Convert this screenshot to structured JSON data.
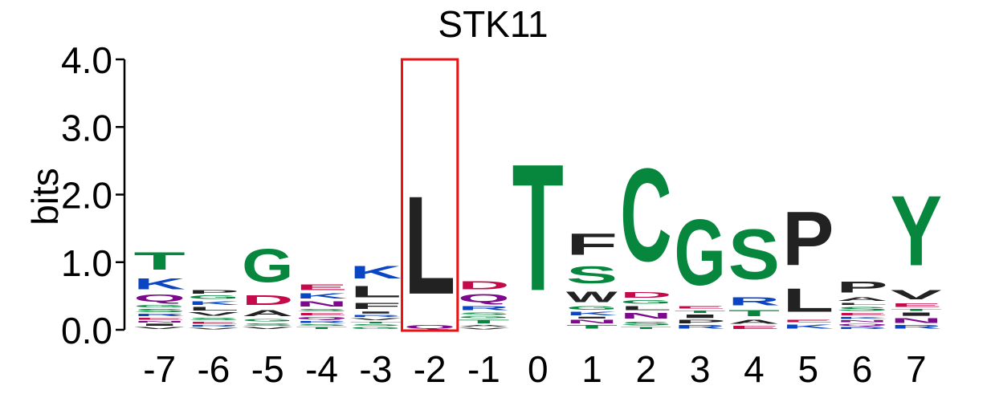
{
  "chart_data": {
    "type": "sequence-logo",
    "title": "STK11",
    "ylabel": "bits",
    "ylim": [
      0,
      4
    ],
    "yticks": [
      "0.0",
      "1.0",
      "2.0",
      "3.0",
      "4.0"
    ],
    "highlight_position": "-2",
    "highlight_color": "#ee1111",
    "colors": {
      "green": "#07873e",
      "blue": "#0a45c4",
      "purple": "#7d0a8c",
      "red": "#c40a4a",
      "black": "#222222"
    },
    "positions": [
      {
        "label": "-7",
        "letters": [
          {
            "l": "V",
            "h": 0.05,
            "c": "black"
          },
          {
            "l": "I",
            "h": 0.05,
            "c": "black"
          },
          {
            "l": "N",
            "h": 0.04,
            "c": "purple"
          },
          {
            "l": "E",
            "h": 0.05,
            "c": "red"
          },
          {
            "l": "R",
            "h": 0.06,
            "c": "blue"
          },
          {
            "l": "S",
            "h": 0.07,
            "c": "green"
          },
          {
            "l": "G",
            "h": 0.06,
            "c": "green"
          },
          {
            "l": "Q",
            "h": 0.17,
            "c": "purple"
          },
          {
            "l": "K",
            "h": 0.26,
            "c": "blue"
          },
          {
            "l": "T",
            "h": 0.42,
            "c": "green"
          }
        ]
      },
      {
        "label": "-6",
        "letters": [
          {
            "l": "V",
            "h": 0.04,
            "c": "black"
          },
          {
            "l": "R",
            "h": 0.04,
            "c": "blue"
          },
          {
            "l": "E",
            "h": 0.05,
            "c": "red"
          },
          {
            "l": "S",
            "h": 0.06,
            "c": "green"
          },
          {
            "l": "V",
            "h": 0.08,
            "c": "black"
          },
          {
            "l": "L",
            "h": 0.08,
            "c": "black"
          },
          {
            "l": "K",
            "h": 0.09,
            "c": "blue"
          },
          {
            "l": "G",
            "h": 0.08,
            "c": "green"
          },
          {
            "l": "P",
            "h": 0.08,
            "c": "black"
          }
        ]
      },
      {
        "label": "-5",
        "letters": [
          {
            "l": "V",
            "h": 0.05,
            "c": "black"
          },
          {
            "l": "S",
            "h": 0.06,
            "c": "green"
          },
          {
            "l": "G",
            "h": 0.06,
            "c": "green"
          },
          {
            "l": "A",
            "h": 0.15,
            "c": "black"
          },
          {
            "l": "D",
            "h": 0.23,
            "c": "red"
          },
          {
            "l": "G",
            "h": 0.79,
            "c": "green"
          }
        ]
      },
      {
        "label": "-4",
        "letters": [
          {
            "l": "T",
            "h": 0.05,
            "c": "green"
          },
          {
            "l": "S",
            "h": 0.04,
            "c": "green"
          },
          {
            "l": "R",
            "h": 0.05,
            "c": "blue"
          },
          {
            "l": "Q",
            "h": 0.06,
            "c": "purple"
          },
          {
            "l": "E",
            "h": 0.06,
            "c": "red"
          },
          {
            "l": "S",
            "h": 0.06,
            "c": "green"
          },
          {
            "l": "N",
            "h": 0.12,
            "c": "purple"
          },
          {
            "l": "K",
            "h": 0.12,
            "c": "blue"
          },
          {
            "l": "E",
            "h": 0.13,
            "c": "red"
          }
        ]
      },
      {
        "label": "-3",
        "letters": [
          {
            "l": "G",
            "h": 0.05,
            "c": "green"
          },
          {
            "l": "S",
            "h": 0.04,
            "c": "green"
          },
          {
            "l": "T",
            "h": 0.04,
            "c": "green"
          },
          {
            "l": "V",
            "h": 0.05,
            "c": "black"
          },
          {
            "l": "R",
            "h": 0.05,
            "c": "blue"
          },
          {
            "l": "I",
            "h": 0.05,
            "c": "black"
          },
          {
            "l": "F",
            "h": 0.15,
            "c": "black"
          },
          {
            "l": "L",
            "h": 0.27,
            "c": "black"
          },
          {
            "l": "K",
            "h": 0.29,
            "c": "blue"
          }
        ]
      },
      {
        "label": "-2",
        "letters": [
          {
            "l": "Q",
            "h": 0.08,
            "c": "purple"
          },
          {
            "l": "L",
            "h": 2.32,
            "c": "black"
          }
        ]
      },
      {
        "label": "-1",
        "letters": [
          {
            "l": "V",
            "h": 0.04,
            "c": "black"
          },
          {
            "l": "A",
            "h": 0.04,
            "c": "black"
          },
          {
            "l": "T",
            "h": 0.08,
            "c": "green"
          },
          {
            "l": "G",
            "h": 0.05,
            "c": "green"
          },
          {
            "l": "S",
            "h": 0.06,
            "c": "green"
          },
          {
            "l": "R",
            "h": 0.1,
            "c": "blue"
          },
          {
            "l": "Q",
            "h": 0.19,
            "c": "purple"
          },
          {
            "l": "D",
            "h": 0.2,
            "c": "red"
          }
        ]
      },
      {
        "label": "0",
        "letters": [
          {
            "l": "T",
            "h": 3.0,
            "c": "green"
          }
        ]
      },
      {
        "label": "1",
        "letters": [
          {
            "l": "T",
            "h": 0.08,
            "c": "green"
          },
          {
            "l": "N",
            "h": 0.08,
            "c": "purple"
          },
          {
            "l": "I",
            "h": 0.04,
            "c": "black"
          },
          {
            "l": "K",
            "h": 0.08,
            "c": "blue"
          },
          {
            "l": "G",
            "h": 0.08,
            "c": "green"
          },
          {
            "l": "W",
            "h": 0.25,
            "c": "black"
          },
          {
            "l": "S",
            "h": 0.4,
            "c": "green"
          },
          {
            "l": "F",
            "h": 0.5,
            "c": "black"
          }
        ]
      },
      {
        "label": "2",
        "letters": [
          {
            "l": "T",
            "h": 0.05,
            "c": "green"
          },
          {
            "l": "S",
            "h": 0.09,
            "c": "green"
          },
          {
            "l": "N",
            "h": 0.13,
            "c": "purple"
          },
          {
            "l": "L",
            "h": 0.1,
            "c": "black"
          },
          {
            "l": "G",
            "h": 0.08,
            "c": "green"
          },
          {
            "l": "D",
            "h": 0.14,
            "c": "red"
          },
          {
            "l": "C",
            "h": 2.2,
            "c": "green"
          }
        ]
      },
      {
        "label": "3",
        "letters": [
          {
            "l": "R",
            "h": 0.08,
            "c": "blue"
          },
          {
            "l": "P",
            "h": 0.08,
            "c": "black"
          },
          {
            "l": "I",
            "h": 0.08,
            "c": "black"
          },
          {
            "l": "T",
            "h": 0.06,
            "c": "green"
          },
          {
            "l": "E",
            "h": 0.06,
            "c": "red"
          },
          {
            "l": "G",
            "h": 1.55,
            "c": "green"
          }
        ]
      },
      {
        "label": "4",
        "letters": [
          {
            "l": "E",
            "h": 0.07,
            "c": "red"
          },
          {
            "l": "A",
            "h": 0.1,
            "c": "black"
          },
          {
            "l": "T",
            "h": 0.15,
            "c": "green"
          },
          {
            "l": "R",
            "h": 0.2,
            "c": "blue"
          },
          {
            "l": "S",
            "h": 1.18,
            "c": "green"
          }
        ]
      },
      {
        "label": "5",
        "letters": [
          {
            "l": "K",
            "h": 0.1,
            "c": "blue"
          },
          {
            "l": "E",
            "h": 0.06,
            "c": "red"
          },
          {
            "l": "L",
            "h": 0.55,
            "c": "black"
          },
          {
            "l": "P",
            "h": 1.27,
            "c": "black"
          }
        ]
      },
      {
        "label": "6",
        "letters": [
          {
            "l": "R",
            "h": 0.05,
            "c": "blue"
          },
          {
            "l": "Q",
            "h": 0.05,
            "c": "purple"
          },
          {
            "l": "N",
            "h": 0.05,
            "c": "purple"
          },
          {
            "l": "K",
            "h": 0.05,
            "c": "blue"
          },
          {
            "l": "E",
            "h": 0.06,
            "c": "red"
          },
          {
            "l": "S",
            "h": 0.1,
            "c": "green"
          },
          {
            "l": "L",
            "h": 0.05,
            "c": "black"
          },
          {
            "l": "A",
            "h": 0.09,
            "c": "black"
          },
          {
            "l": "P",
            "h": 0.26,
            "c": "black"
          }
        ]
      },
      {
        "label": "7",
        "letters": [
          {
            "l": "R",
            "h": 0.08,
            "c": "blue"
          },
          {
            "l": "N",
            "h": 0.11,
            "c": "purple"
          },
          {
            "l": "I",
            "h": 0.08,
            "c": "black"
          },
          {
            "l": "T",
            "h": 0.05,
            "c": "green"
          },
          {
            "l": "E",
            "h": 0.09,
            "c": "red"
          },
          {
            "l": "V",
            "h": 0.22,
            "c": "black"
          },
          {
            "l": "Y",
            "h": 1.65,
            "c": "green"
          }
        ]
      }
    ]
  }
}
